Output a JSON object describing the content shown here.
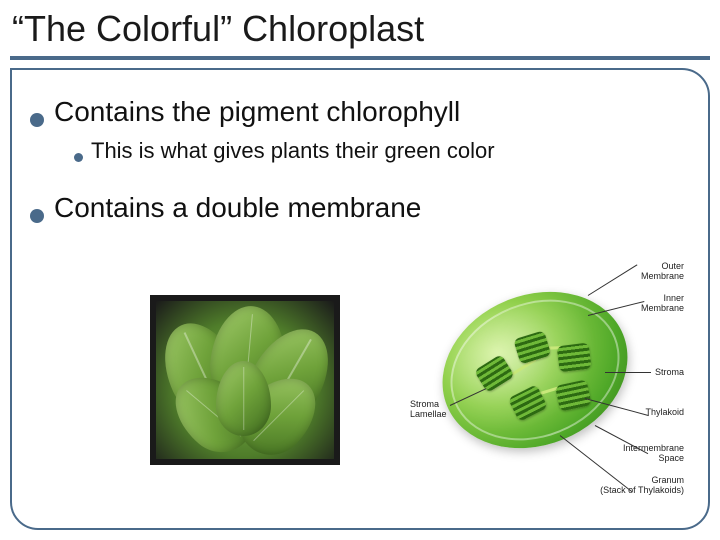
{
  "title": "“The Colorful” Chloroplast",
  "accent_color": "#4a6a8a",
  "text_color": "#111111",
  "background_color": "#ffffff",
  "bullets": {
    "b1": "Contains the pigment chlorophyll",
    "b1_sub1": "This is what gives plants their green color",
    "b2": "Contains a double membrane"
  },
  "plant_image": {
    "description": "photo of green hosta leaves",
    "dominant_color": "#6fa23a",
    "background": "#1a1a1a"
  },
  "chloroplast_diagram": {
    "body_gradient": [
      "#d4f29a",
      "#8fcf4a",
      "#4fa828",
      "#2d7a18"
    ],
    "labels": {
      "outer_membrane": "Outer\nMembrane",
      "inner_membrane": "Inner\nMembrane",
      "stroma": "Stroma",
      "thylakoid": "Thylakoid",
      "intermembrane_space": "Intermembrane\nSpace",
      "granum": "Granum\n(Stack of Thylakoids)",
      "stroma_lamellae": "Stroma\nLamellae"
    },
    "label_fontsize": 9,
    "label_color": "#222222"
  }
}
